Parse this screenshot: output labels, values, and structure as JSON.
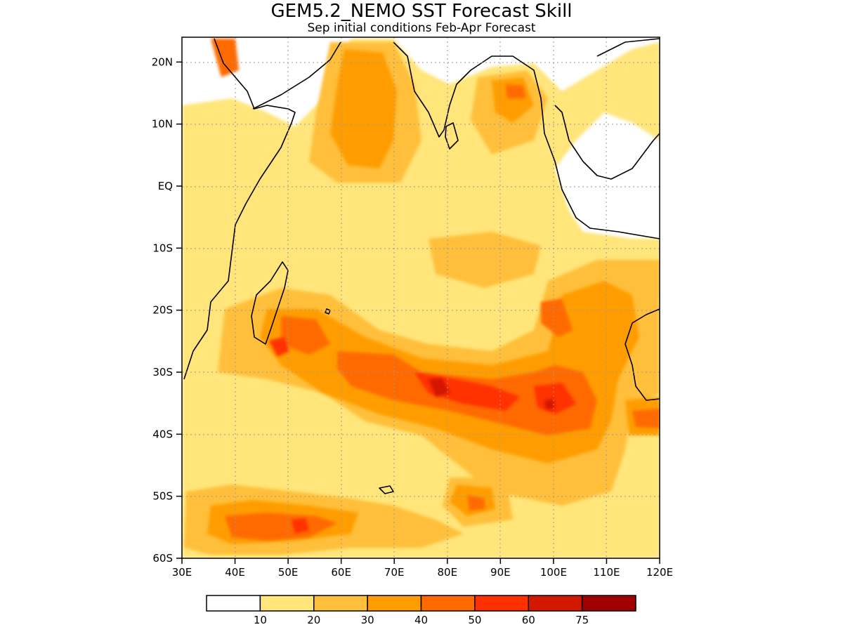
{
  "title": "GEM5.2_NEMO SST Forecast Skill",
  "subtitle": "Sep initial conditions  Feb-Apr Forecast",
  "map": {
    "lon_range": [
      30,
      120
    ],
    "lat_range": [
      -60,
      24
    ],
    "lon_ticks": [
      "30E",
      "40E",
      "50E",
      "60E",
      "70E",
      "80E",
      "90E",
      "100E",
      "110E",
      "120E"
    ],
    "lat_ticks": [
      "20N",
      "10N",
      "EQ",
      "10S",
      "20S",
      "30S",
      "40S",
      "50S",
      "60S"
    ],
    "grid": true
  },
  "colorbar": {
    "levels": [
      "10",
      "20",
      "30",
      "40",
      "50",
      "60",
      "75"
    ],
    "colors": [
      "#ffffff",
      "#ffe57a",
      "#ffbf3a",
      "#ff9d00",
      "#ff6a00",
      "#ff3000",
      "#d41800",
      "#a00000"
    ]
  }
}
